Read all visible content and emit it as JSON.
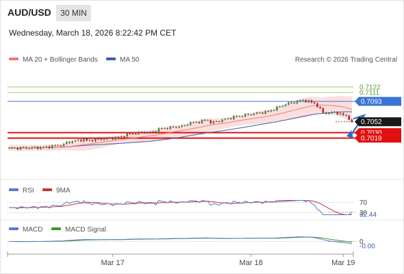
{
  "header": {
    "pair": "AUD/USD",
    "timeframe": "30 MIN",
    "datetime": "Wednesday, March 18, 2026 8:22:42 PM CET"
  },
  "legend": {
    "ma20_label": "MA 20 + Bollinger Bands",
    "ma50_label": "MA 50",
    "rsi_label": "RSI",
    "rsi_ma_label": "9MA",
    "macd_label": "MACD",
    "macd_signal_label": "MACD Signal"
  },
  "watermark": "Research © 2026 Trading Central",
  "colors": {
    "bullish": "#2e9e3a",
    "bearish": "#d0202a",
    "ma20": "#f07878",
    "ma50": "#3a5ea8",
    "bollinger_fill": "#fbdcdc",
    "resistance": "#9ccf6e",
    "pivot": "#3b73d6",
    "support": "#e01010",
    "current": "#1a1a1a",
    "arrow": "#2e6bc6",
    "rsi": "#5a78d0",
    "rsi_ma": "#d03030",
    "macd": "#5a78d0",
    "macd_signal": "#3a9a2a"
  },
  "chart_data": [
    {
      "type": "candlestick",
      "title": "",
      "ylim": [
        0.6955,
        0.7162
      ],
      "levels": [
        {
          "name": "resistance-2",
          "value": 0.7122,
          "label": "0.7122",
          "style": "resistance"
        },
        {
          "name": "resistance-1",
          "value": 0.7111,
          "label": "0.7111",
          "style": "resistance"
        },
        {
          "name": "pivot",
          "value": 0.7093,
          "label": "0.7093",
          "style": "pivot"
        },
        {
          "name": "current-price",
          "value": 0.7052,
          "label": "0.7052",
          "style": "current"
        },
        {
          "name": "support-1",
          "value": 0.703,
          "label": "0.7030",
          "style": "support"
        },
        {
          "name": "support-2",
          "value": 0.7019,
          "label": "0.7019",
          "style": "support"
        }
      ],
      "forecast_arrow": {
        "from": 0.7058,
        "to": 0.7024
      },
      "x_ticks": [
        "Mar 17",
        "Mar 18",
        "Mar 19"
      ],
      "x_tick_index": [
        36,
        84,
        116
      ]
    },
    {
      "type": "line",
      "name": "RSI",
      "ylim": [
        10,
        90
      ],
      "levels": [
        {
          "value": 70,
          "label": "70"
        },
        {
          "value": 30,
          "label": "30"
        }
      ],
      "current": {
        "value": 32.44,
        "label": "32.44"
      }
    },
    {
      "type": "line",
      "name": "MACD",
      "ylim": [
        -0.0025,
        0.0015
      ],
      "levels": [
        {
          "value": 0,
          "label": "0"
        }
      ],
      "current": {
        "value": -0.0,
        "label": "-0.00"
      }
    }
  ]
}
